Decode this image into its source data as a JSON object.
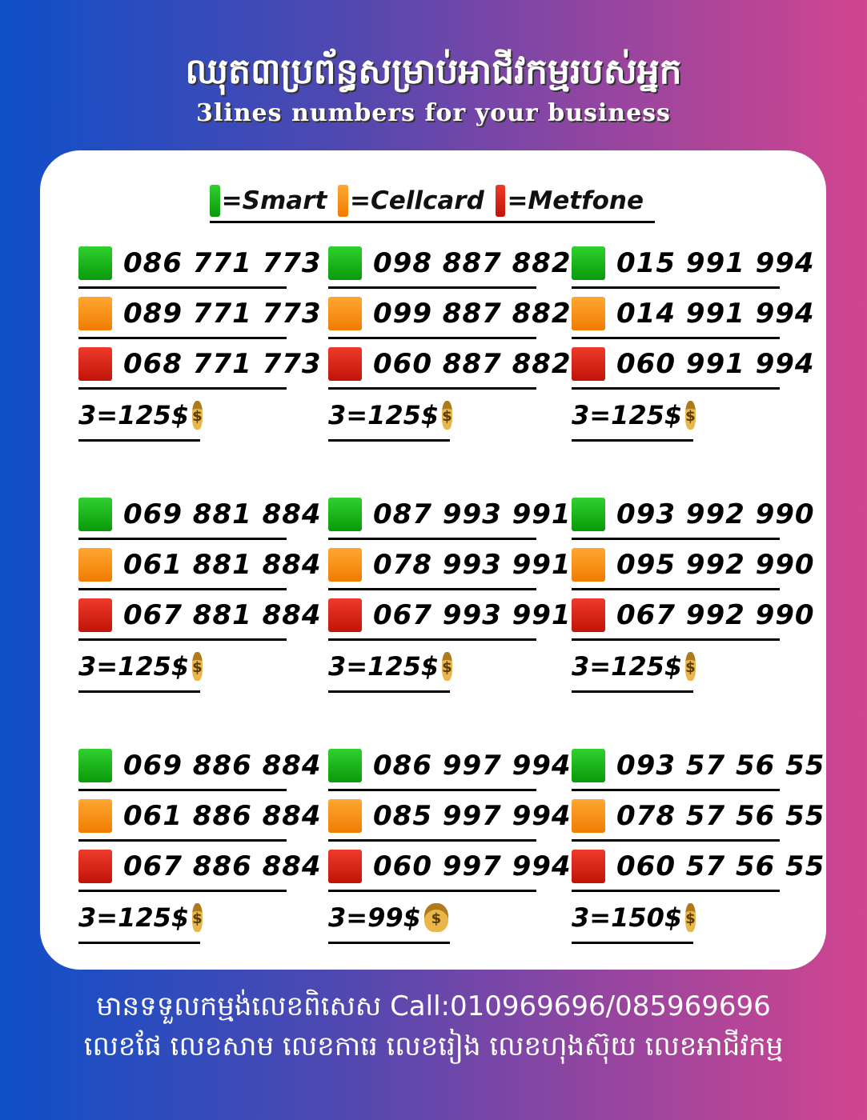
{
  "header": {
    "title": "ឈុត៣ប្រព័ន្ធសម្រាប់អាជីវកម្មរបស់អ្នក",
    "subtitle": "3lines numbers for your business"
  },
  "legend": [
    {
      "color": "#16b516",
      "label": "=Smart"
    },
    {
      "color": "#f79214",
      "label": "=Cellcard"
    },
    {
      "color": "#d8281a",
      "label": "=Metfone"
    }
  ],
  "groups": [
    {
      "numbers": [
        "086 771 773",
        "089 771 773",
        "068 771 773"
      ],
      "price": "3=125$"
    },
    {
      "numbers": [
        "098 887 882",
        "099 887 882",
        "060 887 882"
      ],
      "price": "3=125$"
    },
    {
      "numbers": [
        "015 991 994",
        "014 991 994",
        "060 991 994"
      ],
      "price": "3=125$"
    },
    {
      "numbers": [
        "069 881 884",
        "061 881 884",
        "067 881 884"
      ],
      "price": "3=125$"
    },
    {
      "numbers": [
        "087 993 991",
        "078 993 991",
        "067 993 991"
      ],
      "price": "3=125$"
    },
    {
      "numbers": [
        "093 992 990",
        "095 992 990",
        "067 992 990"
      ],
      "price": "3=125$"
    },
    {
      "numbers": [
        "069 886 884",
        "061 886 884",
        "067 886 884"
      ],
      "price": "3=125$"
    },
    {
      "numbers": [
        "086 997 994",
        "085 997 994",
        "060 997 994"
      ],
      "price": "3=99$"
    },
    {
      "numbers": [
        "093 57 56 55",
        "078 57 56 55",
        "060 57 56 55"
      ],
      "price": "3=150$"
    }
  ],
  "price_icon": "money-bag-icon",
  "footer": {
    "line1": "មានទទួលកម្មង់លេខពិសេស Call:010969696/085969696",
    "line2": "លេខផែ លេខសាម លេខការេ លេខរៀង លេខហុងស៊ុយ លេខអាជីវកម្ម"
  }
}
